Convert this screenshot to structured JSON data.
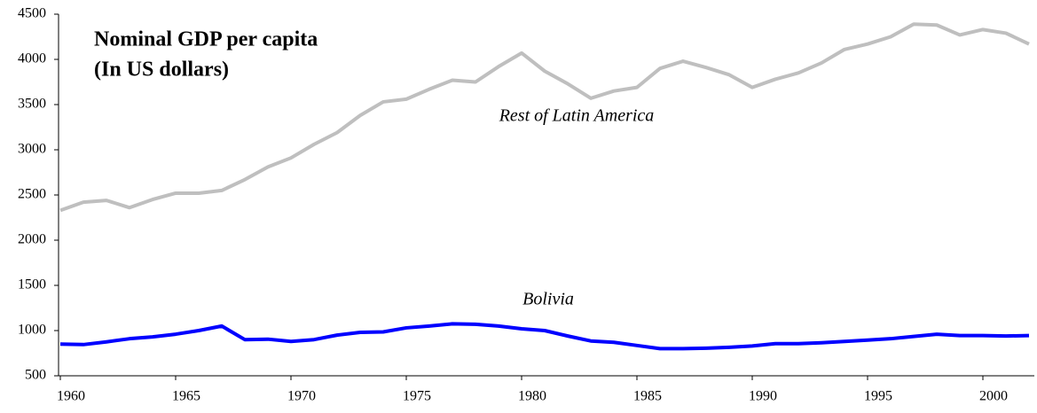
{
  "chart_data": {
    "type": "line",
    "title": [
      "Nominal GDP per capita",
      "(In US dollars)"
    ],
    "annotations": [
      "Rest of Latin America",
      "Bolivia"
    ],
    "x": [
      1960,
      1961,
      1962,
      1963,
      1964,
      1965,
      1966,
      1967,
      1968,
      1969,
      1970,
      1971,
      1972,
      1973,
      1974,
      1975,
      1976,
      1977,
      1978,
      1979,
      1980,
      1981,
      1982,
      1983,
      1984,
      1985,
      1986,
      1987,
      1988,
      1989,
      1990,
      1991,
      1992,
      1993,
      1994,
      1995,
      1996,
      1997,
      1998,
      1999,
      2000,
      2001,
      2002
    ],
    "series": [
      {
        "name": "Rest of Latin America",
        "color": "#bfbfbf",
        "values": [
          2330,
          2420,
          2440,
          2360,
          2450,
          2520,
          2520,
          2550,
          2670,
          2810,
          2910,
          3060,
          3190,
          3380,
          3530,
          3560,
          3670,
          3770,
          3750,
          3920,
          4070,
          3870,
          3730,
          3570,
          3650,
          3690,
          3900,
          3980,
          3910,
          3830,
          3690,
          3780,
          3850,
          3960,
          4110,
          4170,
          4250,
          4390,
          4380,
          4270,
          4330,
          4290,
          4170
        ]
      },
      {
        "name": "Bolivia",
        "color": "#0000ff",
        "values": [
          850,
          845,
          875,
          910,
          930,
          960,
          1000,
          1050,
          900,
          905,
          880,
          900,
          950,
          980,
          985,
          1030,
          1050,
          1075,
          1070,
          1050,
          1020,
          1000,
          940,
          885,
          870,
          835,
          800,
          800,
          805,
          815,
          830,
          855,
          855,
          865,
          880,
          895,
          910,
          935,
          960,
          945,
          945,
          940,
          945
        ]
      }
    ],
    "xlim": [
      1960,
      2002
    ],
    "xticks": [
      1960,
      1965,
      1970,
      1975,
      1980,
      1985,
      1990,
      1995,
      2000
    ],
    "ylim": [
      500,
      4500
    ],
    "yticks": [
      500,
      1000,
      1500,
      2000,
      2500,
      3000,
      3500,
      4000,
      4500
    ],
    "grid": false
  }
}
